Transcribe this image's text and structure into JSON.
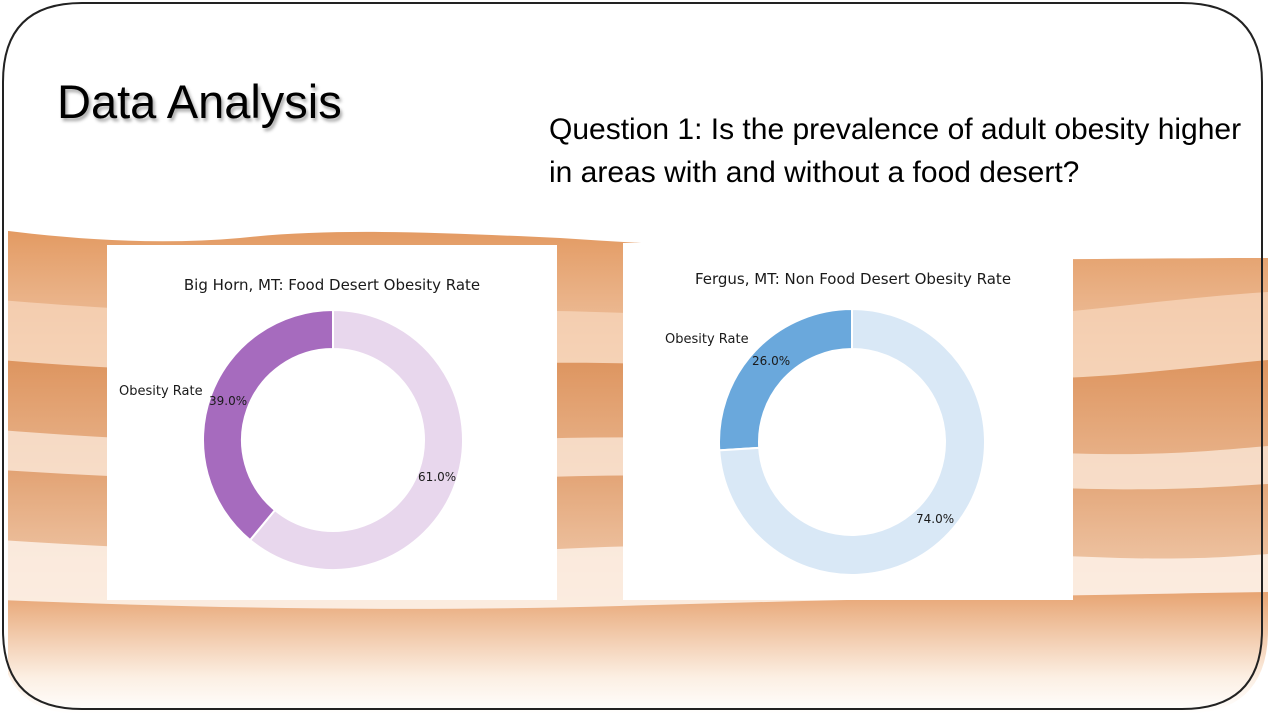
{
  "slide": {
    "title": "Data Analysis",
    "question": "Question 1:  Is the prevalence of adult obesity higher in areas with and without a food desert?"
  },
  "chart_data": [
    {
      "type": "pie",
      "donut": true,
      "title": "Big Horn, MT: Food Desert Obesity Rate",
      "slices": [
        {
          "label": "Obesity Rate",
          "value": 39.0,
          "pct_label": "39.0%",
          "color": "#a66bbe"
        },
        {
          "label": "",
          "value": 61.0,
          "pct_label": "61.0%",
          "color": "#e8d7ed"
        }
      ]
    },
    {
      "type": "pie",
      "donut": true,
      "title": "Fergus, MT: Non Food Desert Obesity Rate",
      "slices": [
        {
          "label": "Obesity Rate",
          "value": 26.0,
          "pct_label": "26.0%",
          "color": "#6aa8dc"
        },
        {
          "label": "",
          "value": 74.0,
          "pct_label": "74.0%",
          "color": "#d9e8f6"
        }
      ]
    }
  ],
  "colors": {
    "desert_light": "#f4cfae",
    "desert_mid": "#e8a774",
    "desert_dark": "#d88a50",
    "frame": "#222222"
  }
}
